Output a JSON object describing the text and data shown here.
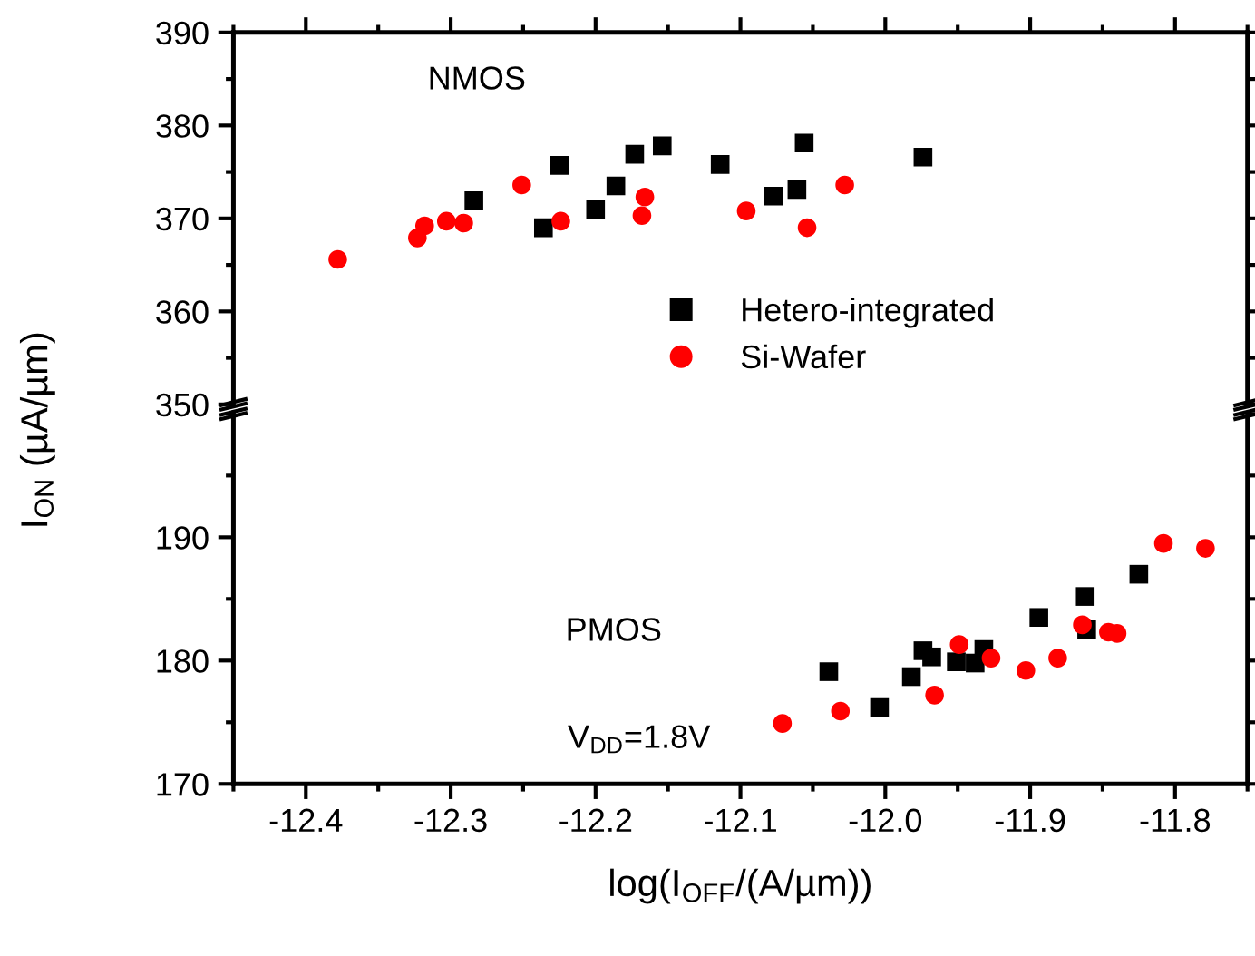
{
  "chart_data": [
    {
      "type": "scatter",
      "ylabel": "I$_{ON}$ (µA/µm)",
      "xlim": [
        -12.45,
        -11.75
      ],
      "xticks": [
        -12.4,
        -12.3,
        -12.2,
        -12.1,
        -12.0,
        -11.9,
        -11.8
      ],
      "ylim": [
        350,
        390
      ],
      "yticks": [
        350,
        360,
        370,
        380,
        390
      ],
      "tick_labels": "y",
      "legend": "bottom right",
      "annotations": [
        "NMOS"
      ],
      "series": [
        {
          "name": "Hetero-integrated",
          "color": "#000000",
          "marker": "square",
          "x": [
            -12.284,
            -12.236,
            -12.225,
            -12.2,
            -12.186,
            -12.173,
            -12.154,
            -12.114,
            -12.077,
            -12.061,
            -12.056,
            -11.974
          ],
          "values": [
            371.9,
            369.0,
            375.7,
            371.0,
            373.5,
            376.9,
            377.8,
            375.8,
            372.4,
            373.1,
            378.1,
            376.6
          ]
        },
        {
          "name": "Si-Wafer",
          "color": "#ff0000",
          "marker": "circle",
          "x": [
            -12.378,
            -12.323,
            -12.318,
            -12.303,
            -12.291,
            -12.251,
            -12.224,
            -12.166,
            -12.168,
            -12.096,
            -12.054,
            -12.028
          ],
          "values": [
            365.6,
            367.9,
            369.2,
            369.7,
            369.5,
            373.6,
            369.7,
            372.3,
            370.3,
            370.8,
            369.0,
            373.6
          ]
        }
      ]
    },
    {
      "type": "scatter",
      "xlabel": "log(I$_{OFF}$/(A/µm))",
      "xlim": [
        -12.45,
        -11.75
      ],
      "xticks": [
        -12.4,
        -12.3,
        -12.2,
        -12.1,
        {
          "value": -12.0,
          "label": "-12.0"
        },
        -11.9,
        -11.8
      ],
      "ylim": [
        170,
        200
      ],
      "yticks": [
        170,
        180,
        190
      ],
      "annotations": [
        "PMOS",
        "V$_{DD}$=1.8V"
      ],
      "series": [
        {
          "color": "#000000",
          "marker": "square",
          "x": [
            -12.039,
            -12.004,
            -11.982,
            -11.974,
            -11.968,
            -11.951,
            -11.938,
            -11.932,
            -11.894,
            -11.862,
            -11.861,
            -11.825
          ],
          "values": [
            179.1,
            176.2,
            178.7,
            180.8,
            180.3,
            179.9,
            179.8,
            180.9,
            183.5,
            185.2,
            182.5,
            187.0
          ]
        },
        {
          "color": "#ff0000",
          "marker": "circle",
          "x": [
            -12.071,
            -12.031,
            -11.966,
            -11.949,
            -11.927,
            -11.903,
            -11.881,
            -11.864,
            -11.846,
            -11.84,
            -11.808,
            -11.779
          ],
          "values": [
            174.9,
            175.9,
            177.2,
            181.3,
            180.2,
            179.2,
            180.2,
            182.9,
            182.3,
            182.2,
            189.5,
            189.1
          ]
        }
      ]
    }
  ]
}
